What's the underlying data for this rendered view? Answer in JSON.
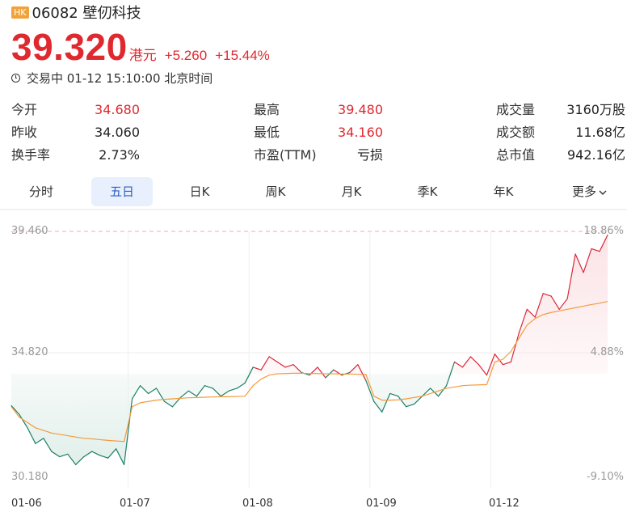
{
  "header": {
    "market_badge": "HK",
    "title": "06082 壁仞科技",
    "price": "39.320",
    "unit": "港元",
    "change": "+5.260",
    "change_pct": "+15.44%",
    "status": "交易中 01-12 15:10:00 北京时间"
  },
  "stats": {
    "open": {
      "label": "今开",
      "value": "34.680"
    },
    "prev_close": {
      "label": "昨收",
      "value": "34.060"
    },
    "turnover_rate": {
      "label": "换手率",
      "value": "2.73%"
    },
    "high": {
      "label": "最高",
      "value": "39.480"
    },
    "low": {
      "label": "最低",
      "value": "34.160"
    },
    "pe": {
      "label": "市盈(TTM)",
      "value": "亏损"
    },
    "volume": {
      "label": "成交量",
      "value": "3160万股"
    },
    "amount": {
      "label": "成交额",
      "value": "11.68亿"
    },
    "market_cap": {
      "label": "总市值",
      "value": "942.16亿"
    }
  },
  "tabs": [
    "分时",
    "五日",
    "日K",
    "周K",
    "月K",
    "季K",
    "年K",
    "更多"
  ],
  "active_tab": "五日",
  "chart_data": {
    "type": "line",
    "yticks": [
      "39.460",
      "34.820",
      "30.180"
    ],
    "pct_ticks": [
      "18.86%",
      "4.88%",
      "-9.10%"
    ],
    "ylim": [
      30.18,
      39.46
    ],
    "ref_price": 34.06,
    "days": [
      "01-06",
      "01-07",
      "01-08",
      "01-09",
      "01-12"
    ],
    "colors": {
      "up": "#d9283a",
      "down": "#1d8066",
      "avg": "#f39b3c",
      "up_fill": "#fbe3e6",
      "down_fill": "#e1efea"
    },
    "series": [
      {
        "values": [
          32.84,
          32.5,
          32.0,
          31.4,
          31.6,
          31.1,
          30.9,
          31.0,
          30.6,
          30.9,
          31.1,
          30.95,
          30.85,
          31.2,
          30.6,
          33.1,
          33.6,
          33.3,
          33.5,
          33.0,
          32.8,
          33.15,
          33.4,
          33.2,
          33.6,
          33.5,
          33.2,
          33.4,
          33.5,
          33.7,
          34.3,
          34.2,
          34.7,
          34.5,
          34.3,
          34.4,
          34.1,
          34.0,
          34.3,
          33.9,
          34.2,
          34.0,
          34.1,
          34.4,
          33.8,
          33.0,
          32.6,
          33.3,
          33.2,
          32.8,
          32.9,
          33.2,
          33.5,
          33.2,
          33.6,
          34.5,
          34.3,
          34.7,
          34.4,
          34.0,
          34.8,
          34.4,
          34.5,
          35.6,
          36.5,
          36.2,
          37.1,
          37.0,
          36.5,
          36.9,
          38.6,
          37.9,
          38.8,
          38.7,
          39.32
        ]
      },
      {
        "values": [
          32.8,
          32.4,
          32.2,
          32.0,
          31.9,
          31.8,
          31.75,
          31.7,
          31.65,
          31.6,
          31.58,
          31.55,
          31.52,
          31.5,
          31.48,
          32.8,
          32.95,
          33.0,
          33.05,
          33.08,
          33.1,
          33.12,
          33.14,
          33.15,
          33.16,
          33.17,
          33.18,
          33.18,
          33.19,
          33.2,
          33.6,
          33.85,
          34.0,
          34.05,
          34.06,
          34.07,
          34.07,
          34.06,
          34.06,
          34.05,
          34.05,
          34.04,
          34.04,
          34.03,
          34.03,
          33.2,
          33.05,
          33.05,
          33.06,
          33.1,
          33.15,
          33.2,
          33.3,
          33.4,
          33.5,
          33.55,
          33.6,
          33.62,
          33.63,
          33.64,
          34.5,
          34.6,
          34.9,
          35.4,
          35.9,
          36.15,
          36.3,
          36.38,
          36.44,
          36.5,
          36.56,
          36.62,
          36.68,
          36.73,
          36.8
        ]
      }
    ]
  }
}
